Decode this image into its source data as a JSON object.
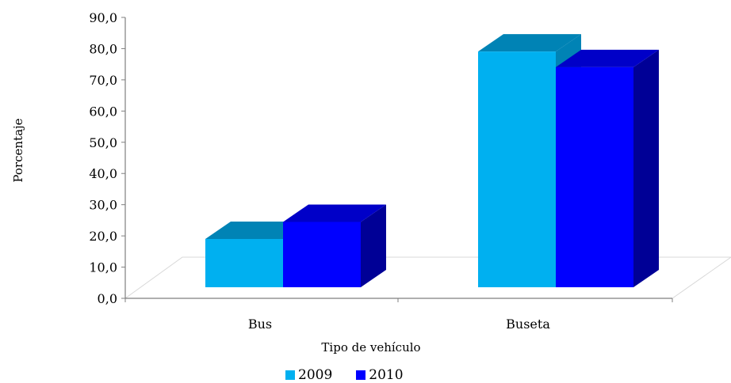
{
  "chart_data": {
    "type": "bar",
    "categories": [
      "Bus",
      "Buseta"
    ],
    "series": [
      {
        "name": "2009",
        "values": [
          17.0,
          83.0
        ],
        "color": "#00B0F0",
        "top_color": "#0083B5",
        "side_color": "#0083B5"
      },
      {
        "name": "2010",
        "values": [
          23.0,
          77.5
        ],
        "color": "#0000FF",
        "top_color": "#0000C8",
        "side_color": "#000096"
      }
    ],
    "ylabel": "Porcentaje",
    "xlabel": "Tipo de vehículo",
    "ylim": [
      0,
      90
    ],
    "yticks": [
      "0,0",
      "10,0",
      "20,0",
      "30,0",
      "40,0",
      "50,0",
      "60,0",
      "70,0",
      "80,0",
      "90,0"
    ],
    "legend_position": "bottom",
    "grid": false
  }
}
